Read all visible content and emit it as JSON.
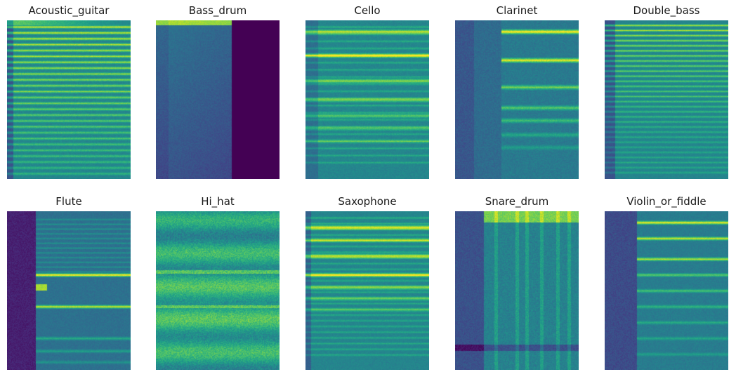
{
  "chart_data": {
    "type": "heatmap",
    "colormap": "viridis",
    "axes_visible": false,
    "grid": false,
    "panels": [
      {
        "title": "Acoustic_guitar",
        "profile": "guitar"
      },
      {
        "title": "Bass_drum",
        "profile": "bassdrum"
      },
      {
        "title": "Cello",
        "profile": "cello"
      },
      {
        "title": "Clarinet",
        "profile": "clarinet"
      },
      {
        "title": "Double_bass",
        "profile": "doublebass"
      },
      {
        "title": "Flute",
        "profile": "flute"
      },
      {
        "title": "Hi_hat",
        "profile": "hihat"
      },
      {
        "title": "Saxophone",
        "profile": "saxophone"
      },
      {
        "title": "Snare_drum",
        "profile": "snare"
      },
      {
        "title": "Violin_or_fiddle",
        "profile": "violin"
      }
    ]
  }
}
